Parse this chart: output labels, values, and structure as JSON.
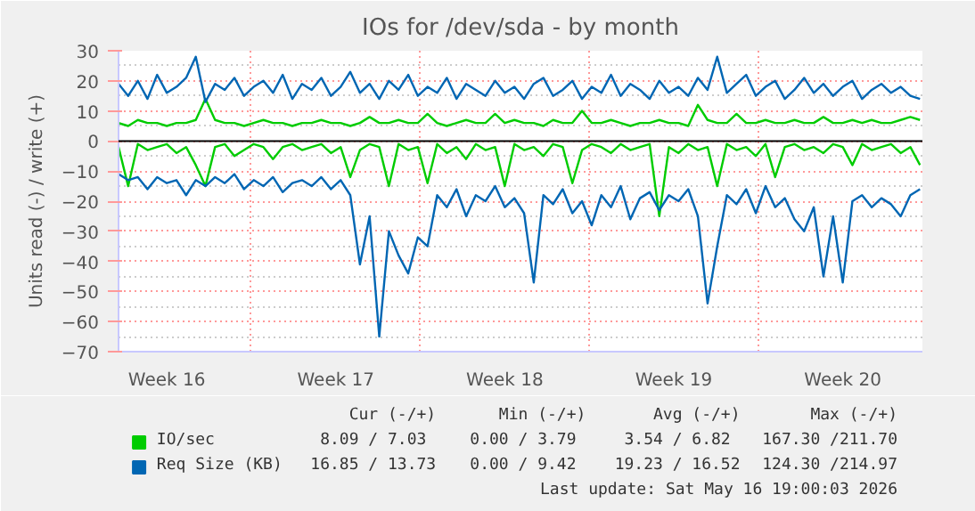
{
  "chart_data": {
    "type": "line",
    "title": "IOs for /dev/sda - by month",
    "ylabel": "Units read (-) / write (+)",
    "x": [
      "2026-04-14T12:00",
      "2026-04-14T21:36",
      "2026-04-15T07:12",
      "2026-04-15T16:48",
      "2026-04-16T02:24",
      "2026-04-16T12:00",
      "2026-04-16T21:36",
      "2026-04-17T07:12",
      "2026-04-17T16:48",
      "2026-04-18T02:24",
      "2026-04-18T12:00",
      "2026-04-18T21:36",
      "2026-04-19T07:12",
      "2026-04-19T16:48",
      "2026-04-20T02:24",
      "2026-04-20T12:00",
      "2026-04-20T21:36",
      "2026-04-21T07:12",
      "2026-04-21T16:48",
      "2026-04-22T02:24",
      "2026-04-22T12:00",
      "2026-04-22T21:36",
      "2026-04-23T07:12",
      "2026-04-23T16:48",
      "2026-04-24T02:24",
      "2026-04-24T12:00",
      "2026-04-24T21:36",
      "2026-04-25T07:12",
      "2026-04-25T16:48",
      "2026-04-26T02:24",
      "2026-04-26T12:00",
      "2026-04-26T21:36",
      "2026-04-27T07:12",
      "2026-04-27T16:48",
      "2026-04-28T02:24",
      "2026-04-28T12:00",
      "2026-04-28T21:36",
      "2026-04-29T07:12",
      "2026-04-29T16:48",
      "2026-04-30T02:24",
      "2026-04-30T12:00",
      "2026-04-30T21:36",
      "2026-05-01T07:12",
      "2026-05-01T16:48",
      "2026-05-02T02:24",
      "2026-05-02T12:00",
      "2026-05-02T21:36",
      "2026-05-03T07:12",
      "2026-05-03T16:48",
      "2026-05-04T02:24",
      "2026-05-04T12:00",
      "2026-05-04T21:36",
      "2026-05-05T07:12",
      "2026-05-05T16:48",
      "2026-05-06T02:24",
      "2026-05-06T12:00",
      "2026-05-06T21:36",
      "2026-05-07T07:12",
      "2026-05-07T16:48",
      "2026-05-08T02:24",
      "2026-05-08T12:00",
      "2026-05-08T21:36",
      "2026-05-09T07:12",
      "2026-05-09T16:48",
      "2026-05-10T02:24",
      "2026-05-10T12:00",
      "2026-05-10T21:36",
      "2026-05-11T07:12",
      "2026-05-11T16:48",
      "2026-05-12T02:24",
      "2026-05-12T12:00",
      "2026-05-12T21:36",
      "2026-05-13T07:12",
      "2026-05-13T16:48",
      "2026-05-14T02:24",
      "2026-05-14T12:00",
      "2026-05-14T21:36",
      "2026-05-15T07:12",
      "2026-05-15T16:48",
      "2026-05-16T02:24",
      "2026-05-16T12:00",
      "2026-05-16T21:36",
      "2026-05-17T07:12",
      "2026-05-17T16:48"
    ],
    "series": [
      {
        "name": "IO/sec",
        "color": "#00cc00",
        "values": [
          6,
          5,
          7,
          6,
          6,
          5,
          6,
          6,
          7,
          14,
          7,
          6,
          6,
          5,
          6,
          7,
          6,
          6,
          5,
          6,
          6,
          7,
          6,
          6,
          5,
          6,
          8,
          6,
          6,
          7,
          6,
          6,
          9,
          6,
          5,
          6,
          7,
          6,
          6,
          9,
          6,
          7,
          6,
          6,
          5,
          7,
          6,
          6,
          10,
          6,
          6,
          7,
          6,
          5,
          6,
          6,
          7,
          6,
          6,
          5,
          12,
          7,
          6,
          6,
          9,
          6,
          6,
          7,
          6,
          6,
          7,
          6,
          6,
          8,
          6,
          6,
          7,
          6,
          7,
          6,
          6,
          7,
          8,
          7
        ]
      },
      {
        "color": "#00cc00",
        "values": [
          -2,
          -15,
          -1,
          -3,
          -2,
          -1,
          -4,
          -2,
          -8,
          -15,
          -2,
          -1,
          -5,
          -3,
          -1,
          -2,
          -6,
          -2,
          -1,
          -3,
          -2,
          -1,
          -4,
          -2,
          -12,
          -3,
          -1,
          -2,
          -15,
          -1,
          -3,
          -2,
          -14,
          -1,
          -4,
          -2,
          -6,
          -1,
          -3,
          -2,
          -15,
          -1,
          -3,
          -2,
          -5,
          -1,
          -2,
          -14,
          -3,
          -1,
          -2,
          -4,
          -1,
          -3,
          -2,
          -1,
          -25,
          -2,
          -4,
          -1,
          -3,
          -2,
          -15,
          -1,
          -3,
          -2,
          -5,
          -1,
          -12,
          -2,
          -1,
          -3,
          -2,
          -4,
          -1,
          -2,
          -8,
          -1,
          -3,
          -2,
          -1,
          -4,
          -2,
          -8
        ]
      },
      {
        "name": "Req Size (KB)",
        "color": "#0066b3",
        "values": [
          19,
          15,
          20,
          14,
          22,
          16,
          18,
          21,
          28,
          13,
          19,
          17,
          21,
          15,
          18,
          20,
          16,
          22,
          14,
          19,
          17,
          21,
          15,
          18,
          23,
          16,
          19,
          14,
          20,
          17,
          22,
          15,
          18,
          16,
          21,
          14,
          19,
          17,
          15,
          20,
          16,
          18,
          14,
          19,
          21,
          15,
          17,
          20,
          14,
          18,
          16,
          22,
          15,
          19,
          17,
          14,
          20,
          16,
          18,
          15,
          21,
          17,
          28,
          16,
          19,
          22,
          15,
          18,
          20,
          14,
          17,
          21,
          16,
          19,
          15,
          18,
          20,
          14,
          17,
          19,
          16,
          18,
          15,
          14
        ]
      },
      {
        "color": "#0066b3",
        "values": [
          -11,
          -13,
          -12,
          -16,
          -12,
          -14,
          -13,
          -18,
          -13,
          -15,
          -12,
          -14,
          -11,
          -16,
          -13,
          -15,
          -12,
          -17,
          -14,
          -13,
          -15,
          -12,
          -16,
          -13,
          -18,
          -41,
          -25,
          -65,
          -30,
          -38,
          -44,
          -32,
          -35,
          -18,
          -22,
          -16,
          -25,
          -18,
          -20,
          -15,
          -22,
          -19,
          -24,
          -47,
          -18,
          -21,
          -16,
          -24,
          -20,
          -28,
          -18,
          -22,
          -15,
          -26,
          -19,
          -17,
          -23,
          -18,
          -20,
          -16,
          -25,
          -54,
          -35,
          -18,
          -21,
          -16,
          -24,
          -15,
          -22,
          -19,
          -26,
          -30,
          -22,
          -45,
          -25,
          -47,
          -20,
          -18,
          -22,
          -19,
          -21,
          -25,
          -18,
          -16
        ]
      }
    ],
    "xlim": [
      "2026-04-14T12:00",
      "2026-05-17T19:12"
    ],
    "xticks": [
      {
        "value": "2026-04-16T12:00",
        "label": "Week 16"
      },
      {
        "value": "2026-04-20",
        "label": null
      },
      {
        "value": "2026-04-23T12:00",
        "label": "Week 17"
      },
      {
        "value": "2026-04-27",
        "label": null
      },
      {
        "value": "2026-04-30T12:00",
        "label": "Week 18"
      },
      {
        "value": "2026-05-04",
        "label": null
      },
      {
        "value": "2026-05-07T12:00",
        "label": "Week 19"
      },
      {
        "value": "2026-05-11",
        "label": null
      },
      {
        "value": "2026-05-14T12:00",
        "label": "Week 20"
      }
    ],
    "ylim": [
      -70,
      30
    ],
    "yticks": [
      -70,
      -60,
      -50,
      -40,
      -30,
      -20,
      -10,
      0,
      10,
      20,
      30
    ],
    "ref_lines": [
      {
        "axis": "y",
        "value": 0,
        "color": "#000000"
      }
    ],
    "grid": true,
    "legend": "bottom",
    "annotations": [
      "Cur (-/+)",
      "Min (-/+)",
      "Avg (-/+)",
      "Max (-/+)",
      "8.09 /  7.03",
      "0.00 /  3.79",
      "3.54 /  6.82",
      "167.30 /211.70",
      "16.85 / 13.73",
      "0.00 /  9.42",
      "19.23 / 16.52",
      "124.30 /214.97",
      "Last update: Sat May 16 19:00:03 2026"
    ]
  }
}
